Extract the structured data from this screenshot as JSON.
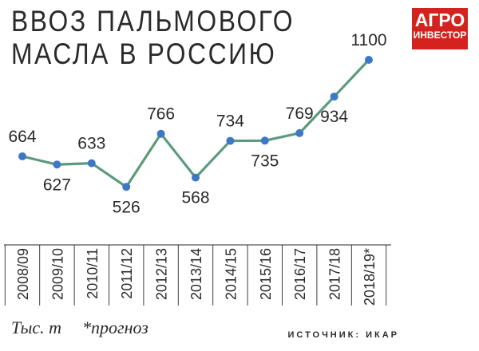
{
  "header": {
    "title_line1": "ВВОЗ ПАЛЬМОВОГО",
    "title_line2": "МАСЛА В РОССИЮ"
  },
  "logo": {
    "line1": "АГРО",
    "line2": "ИНВЕСТОР",
    "color": "#d4231e"
  },
  "footer": {
    "units": "Тыс. т",
    "note": "*прогноз",
    "source": "ИСТОЧНИК: ИКАР"
  },
  "colors": {
    "line": "#5c9a7d",
    "point": "#3d78c8",
    "text": "#2a2a2a"
  },
  "chart_data": {
    "type": "line",
    "categories": [
      "2008/09",
      "2009/10",
      "2010/11",
      "2011/12",
      "2012/13",
      "2013/14",
      "2014/15",
      "2015/16",
      "2016/17",
      "2017/18",
      "2018/19*"
    ],
    "values": [
      664,
      627,
      633,
      526,
      766,
      568,
      734,
      735,
      769,
      934,
      1100
    ],
    "label_position": [
      "above",
      "below",
      "above",
      "below",
      "above",
      "below",
      "above",
      "below",
      "above",
      "below",
      "above"
    ],
    "title": "ВВОЗ ПАЛЬМОВОГО МАСЛА В РОССИЮ",
    "ylabel": "Тыс. т",
    "xlabel": "",
    "grid": false,
    "legend": "none"
  }
}
